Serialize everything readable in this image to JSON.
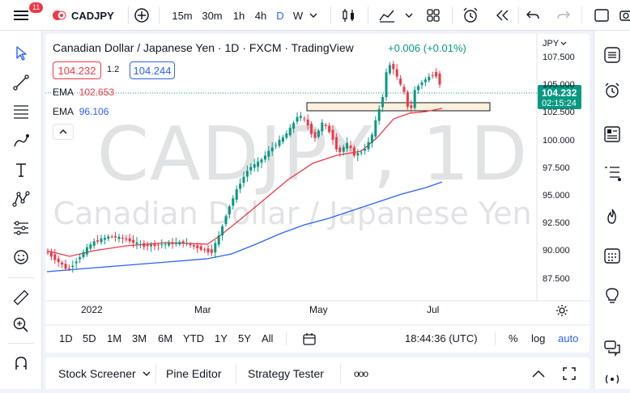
{
  "topbar": {
    "notifications": "11",
    "symbol": "CADJPY",
    "intervals": [
      "15m",
      "30m",
      "1h",
      "4h",
      "D",
      "W"
    ],
    "active_interval": "D"
  },
  "chart": {
    "watermark_symbol": "CADJPY, 1D",
    "watermark_name": "Canadian Dollar / Japanese Yen",
    "title": "Canadian Dollar / Japanese Yen · 1D · FXCM · TradingView",
    "change": "+0.006 (+0.01%)",
    "bid": "104.232",
    "spread": "1.2",
    "ask": "104.244",
    "ema1_label": "EMA",
    "ema1_value": "102.653",
    "ema2_label": "EMA",
    "ema2_value": "96.106",
    "currency": "JPY",
    "last_price": "104.232",
    "countdown": "02:15:24",
    "y_ticks": [
      "107.500",
      "105.000",
      "102.500",
      "100.000",
      "97.500",
      "95.000",
      "92.500",
      "90.000",
      "87.500"
    ],
    "x_ticks": [
      "2022",
      "Mar",
      "May",
      "Jul"
    ],
    "colors": {
      "up": "#089981",
      "down": "#f23645",
      "ema_fast": "#f23645",
      "ema_slow": "#2962ff"
    }
  },
  "range_bar": {
    "ranges": [
      "1D",
      "5D",
      "1M",
      "3M",
      "6M",
      "YTD",
      "1Y",
      "5Y",
      "All"
    ],
    "clock": "18:44:36 (UTC)",
    "percent": "%",
    "log": "log",
    "auto": "auto"
  },
  "bottombar": {
    "tabs": [
      "Stock Screener",
      "Pine Editor",
      "Strategy Tester"
    ],
    "more": "ooo"
  }
}
